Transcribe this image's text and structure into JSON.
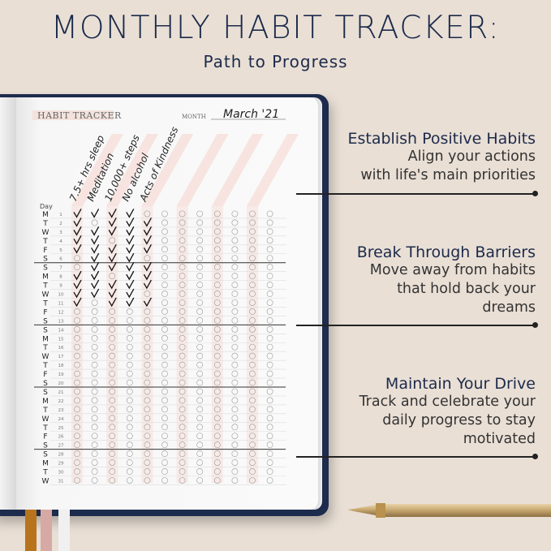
{
  "title": "MONTHLY HABIT TRACKER:",
  "subtitle": "Path to Progress",
  "tracker": {
    "heading": "HABIT TRACKER",
    "month_label": "MONTH",
    "month_value": "March '21",
    "day_header": "Day",
    "habits": [
      "7.5+ hrs sleep",
      "Meditation",
      "10,000+ steps",
      "No alcohol",
      "Acts of Kindness"
    ],
    "column_count": 12,
    "days": [
      {
        "n": "1",
        "d": "M",
        "checks": [
          1,
          1,
          1,
          1,
          0
        ]
      },
      {
        "n": "2",
        "d": "T",
        "checks": [
          1,
          0,
          1,
          1,
          1
        ]
      },
      {
        "n": "3",
        "d": "W",
        "checks": [
          1,
          1,
          1,
          1,
          1
        ]
      },
      {
        "n": "4",
        "d": "T",
        "checks": [
          1,
          1,
          0,
          1,
          1
        ]
      },
      {
        "n": "5",
        "d": "F",
        "checks": [
          1,
          1,
          1,
          1,
          1
        ]
      },
      {
        "n": "6",
        "d": "S",
        "checks": [
          0,
          1,
          1,
          1,
          0
        ]
      },
      {
        "n": "7",
        "d": "S",
        "checks": [
          0,
          1,
          1,
          1,
          1
        ]
      },
      {
        "n": "8",
        "d": "M",
        "checks": [
          1,
          1,
          0,
          1,
          1
        ]
      },
      {
        "n": "9",
        "d": "T",
        "checks": [
          1,
          1,
          1,
          1,
          1
        ]
      },
      {
        "n": "10",
        "d": "W",
        "checks": [
          1,
          1,
          1,
          1,
          0
        ]
      },
      {
        "n": "11",
        "d": "T",
        "checks": [
          1,
          0,
          1,
          1,
          1
        ]
      },
      {
        "n": "12",
        "d": "F",
        "checks": []
      },
      {
        "n": "13",
        "d": "S",
        "checks": []
      },
      {
        "n": "14",
        "d": "S",
        "checks": []
      },
      {
        "n": "15",
        "d": "M",
        "checks": []
      },
      {
        "n": "16",
        "d": "T",
        "checks": []
      },
      {
        "n": "17",
        "d": "W",
        "checks": []
      },
      {
        "n": "18",
        "d": "T",
        "checks": []
      },
      {
        "n": "19",
        "d": "F",
        "checks": []
      },
      {
        "n": "20",
        "d": "S",
        "checks": []
      },
      {
        "n": "21",
        "d": "S",
        "checks": []
      },
      {
        "n": "22",
        "d": "M",
        "checks": []
      },
      {
        "n": "23",
        "d": "T",
        "checks": []
      },
      {
        "n": "24",
        "d": "W",
        "checks": []
      },
      {
        "n": "25",
        "d": "T",
        "checks": []
      },
      {
        "n": "26",
        "d": "F",
        "checks": []
      },
      {
        "n": "27",
        "d": "S",
        "checks": []
      },
      {
        "n": "28",
        "d": "S",
        "checks": []
      },
      {
        "n": "29",
        "d": "M",
        "checks": []
      },
      {
        "n": "30",
        "d": "T",
        "checks": []
      },
      {
        "n": "31",
        "d": "W",
        "checks": []
      }
    ]
  },
  "features": [
    {
      "heading": "Establish Positive Habits",
      "lines": [
        "Align your actions",
        "with life's main priorities"
      ]
    },
    {
      "heading": "Break Through Barriers",
      "lines": [
        "Move away from habits",
        "that hold back your",
        "dreams"
      ]
    },
    {
      "heading": "Maintain Your Drive",
      "lines": [
        "Track and celebrate your",
        "daily progress to stay",
        "motivated"
      ]
    }
  ],
  "colors": {
    "navy": "#1d2b4d",
    "background": "#e9dfd5",
    "stripe": "#f6dcd6",
    "ribbons": [
      "#b8741c",
      "#d7a9a4",
      "#efefef"
    ]
  }
}
